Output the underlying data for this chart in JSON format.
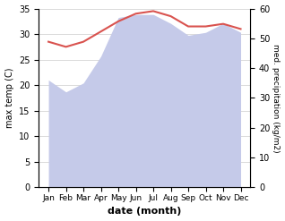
{
  "months": [
    "Jan",
    "Feb",
    "Mar",
    "Apr",
    "May",
    "Jun",
    "Jul",
    "Aug",
    "Sep",
    "Oct",
    "Nov",
    "Dec"
  ],
  "temp": [
    28.5,
    27.5,
    28.5,
    30.5,
    32.5,
    34.0,
    34.5,
    33.5,
    31.5,
    31.5,
    32.0,
    31.0
  ],
  "precip": [
    36,
    32,
    35,
    44,
    57,
    58,
    58,
    55,
    51,
    52,
    55,
    52
  ],
  "temp_color": "#d9534f",
  "precip_color": "#c5cae9",
  "temp_ylim": [
    0,
    35
  ],
  "precip_ylim": [
    0,
    60
  ],
  "temp_yticks": [
    0,
    5,
    10,
    15,
    20,
    25,
    30,
    35
  ],
  "precip_yticks": [
    0,
    10,
    20,
    30,
    40,
    50,
    60
  ],
  "ylabel_left": "max temp (C)",
  "ylabel_right": "med. precipitation (kg/m2)",
  "xlabel": "date (month)",
  "background_color": "#ffffff",
  "grid_color": "#cccccc"
}
